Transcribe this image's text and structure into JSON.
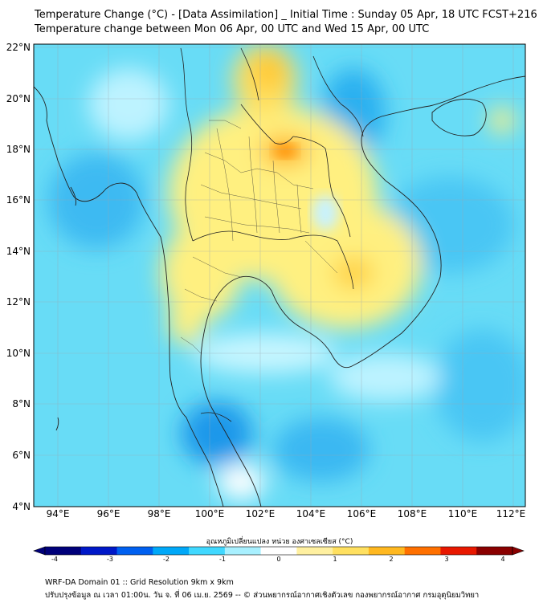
{
  "title_line1": "Temperature Change (°C) - [Data Assimilation] _ Initial Time : Sunday 05 Apr, 18 UTC FCST+216",
  "title_line2": "Temperature change between Mon 06 Apr, 00 UTC and Wed 15 Apr, 00 UTC",
  "lat_labels": [
    "22°N",
    "20°N",
    "18°N",
    "16°N",
    "14°N",
    "12°N",
    "10°N",
    "8°N",
    "6°N",
    "4°N"
  ],
  "lon_labels": [
    "94°E",
    "96°E",
    "98°E",
    "100°E",
    "102°E",
    "104°E",
    "106°E",
    "108°E",
    "110°E",
    "112°E"
  ],
  "colorbar": {
    "label": "อุณหภูมิเปลี่ยนแปลง หน่วย องศาเซลเซียส (°C)",
    "ticks": [
      "-4",
      "-3",
      "-2",
      "-1",
      "0",
      "1",
      "2",
      "3",
      "4"
    ],
    "colors": [
      "#00007a",
      "#0018c8",
      "#0060f0",
      "#00a8f8",
      "#40d8ff",
      "#a8f0ff",
      "#ffffff",
      "#fff0a0",
      "#ffe060",
      "#ffb820",
      "#ff7000",
      "#e81800",
      "#8a0000"
    ]
  },
  "footer_line1": "WRF-DA Domain 01 :: Grid Resolution 9km x 9km",
  "footer_line2": "ปรับปรุงข้อมูล ณ เวลา 01:00น. วัน จ. ที่ 06 เม.ย. 2569 -- © ส่วนพยากรณ์อากาศเชิงตัวเลข กองพยากรณ์อากาศ กรมอุตุนิยมวิทยา"
}
